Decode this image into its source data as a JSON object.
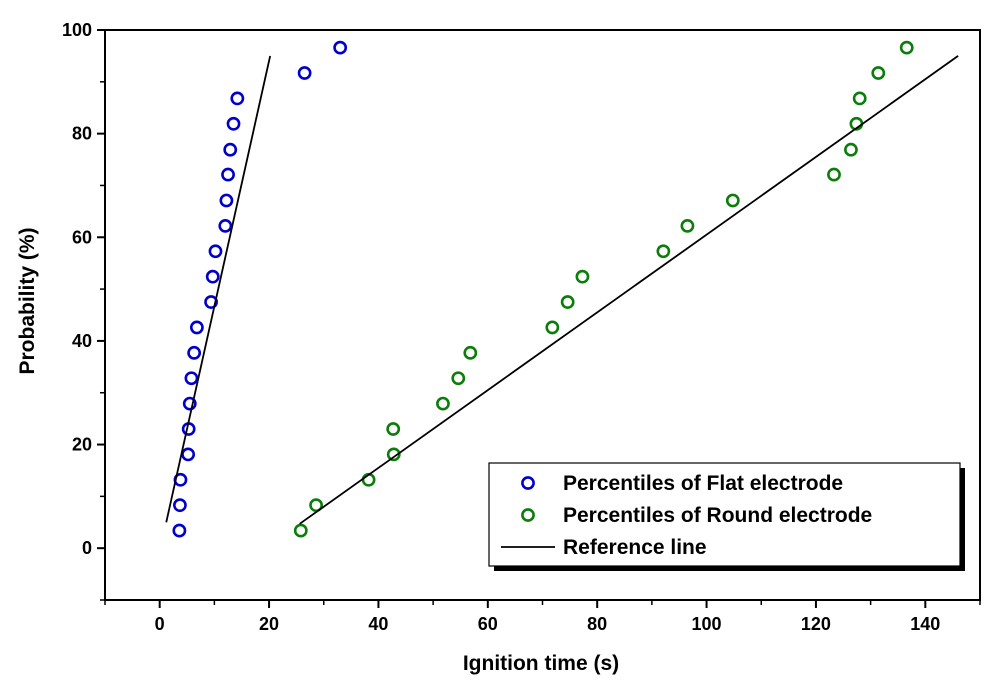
{
  "chart_data": {
    "type": "scatter",
    "xlabel": "Ignition time (s)",
    "ylabel": "Probability (%)",
    "xlim": [
      -10,
      150
    ],
    "ylim": [
      -10,
      100
    ],
    "xticks": [
      0,
      20,
      40,
      60,
      80,
      100,
      120,
      140
    ],
    "yticks": [
      0,
      20,
      40,
      60,
      80,
      100
    ],
    "legend_position": "bottom-right",
    "series": [
      {
        "name": "Percentiles of Flat electrode",
        "kind": "marker",
        "color": "#0000cc",
        "points": [
          [
            3.6,
            3.4
          ],
          [
            3.7,
            8.3
          ],
          [
            3.8,
            13.2
          ],
          [
            5.2,
            18.1
          ],
          [
            5.3,
            23.0
          ],
          [
            5.5,
            27.9
          ],
          [
            5.8,
            32.8
          ],
          [
            6.3,
            37.7
          ],
          [
            6.8,
            42.6
          ],
          [
            9.4,
            47.5
          ],
          [
            9.7,
            52.4
          ],
          [
            10.2,
            57.3
          ],
          [
            12.0,
            62.2
          ],
          [
            12.2,
            67.1
          ],
          [
            12.5,
            72.1
          ],
          [
            12.9,
            76.9
          ],
          [
            13.5,
            81.9
          ],
          [
            14.2,
            86.8
          ],
          [
            26.5,
            91.7
          ],
          [
            33.0,
            96.6
          ]
        ]
      },
      {
        "name": "Percentiles of Round electrode",
        "kind": "marker",
        "color": "#0a7d0a",
        "points": [
          [
            25.8,
            3.4
          ],
          [
            28.6,
            8.3
          ],
          [
            38.2,
            13.2
          ],
          [
            42.8,
            18.1
          ],
          [
            42.7,
            23.0
          ],
          [
            51.8,
            27.9
          ],
          [
            54.6,
            32.8
          ],
          [
            56.8,
            37.7
          ],
          [
            71.8,
            42.6
          ],
          [
            74.6,
            47.5
          ],
          [
            77.3,
            52.4
          ],
          [
            92.1,
            57.3
          ],
          [
            96.5,
            62.2
          ],
          [
            104.8,
            67.1
          ],
          [
            123.3,
            72.1
          ],
          [
            126.4,
            76.9
          ],
          [
            127.4,
            81.9
          ],
          [
            128.0,
            86.8
          ],
          [
            131.4,
            91.7
          ],
          [
            136.6,
            96.6
          ]
        ]
      },
      {
        "name": "Reference line",
        "kind": "line",
        "color": "#000000",
        "segments": [
          [
            [
              1.2,
              5.0
            ],
            [
              20.2,
              95.0
            ]
          ],
          [
            [
              25.6,
              4.7
            ],
            [
              146.0,
              95.0
            ]
          ]
        ]
      }
    ]
  }
}
